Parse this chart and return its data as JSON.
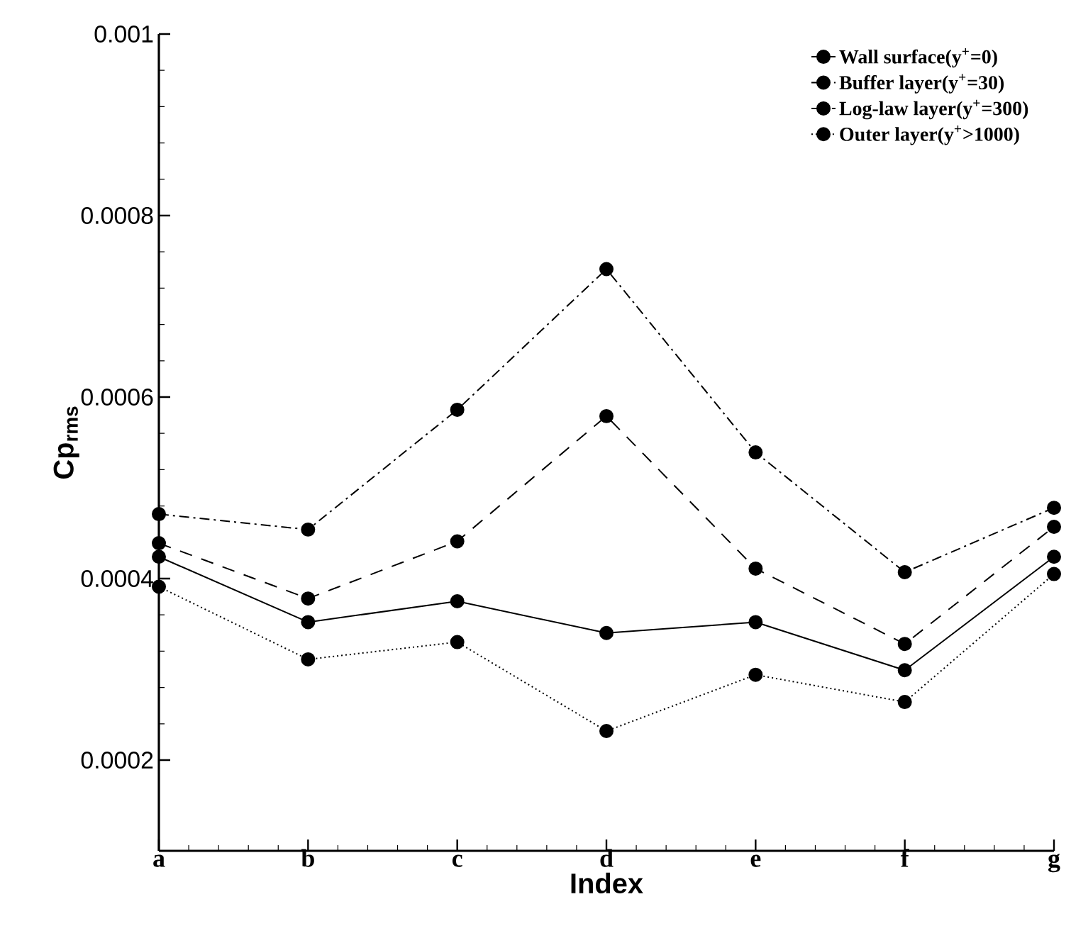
{
  "chart_data": {
    "type": "line",
    "xlabel": "Index",
    "ylabel": "Cp$_{rms}$",
    "categories": [
      "a",
      "b",
      "c",
      "d",
      "e",
      "f",
      "g"
    ],
    "ylim": [
      0.0001,
      0.001
    ],
    "yticks": [
      0.0002,
      0.0004,
      0.0006,
      0.0008,
      0.001
    ],
    "grid": false,
    "legend": "top right",
    "marker": "circle",
    "series": [
      {
        "name": "Wall surface(y$^{+}$=0)",
        "color": "#000000",
        "line_style": "solid",
        "values": [
          0.000424,
          0.000352,
          0.000375,
          0.00034,
          0.000352,
          0.000299,
          0.000424
        ]
      },
      {
        "name": "Buffer layer(y$^{+}$=30)",
        "color": "#000000",
        "line_style": "dashed",
        "values": [
          0.000439,
          0.000378,
          0.000441,
          0.000579,
          0.000411,
          0.000328,
          0.000457
        ]
      },
      {
        "name": "Log-law layer(y$^{+}$=300)",
        "color": "#000000",
        "line_style": "dashdot",
        "values": [
          0.000471,
          0.000454,
          0.000586,
          0.000741,
          0.000539,
          0.000407,
          0.000478
        ]
      },
      {
        "name": "Outer layer(y$^{+}$>1000)",
        "color": "#000000",
        "line_style": "dotted",
        "values": [
          0.000391,
          0.000311,
          0.00033,
          0.000232,
          0.000294,
          0.000264,
          0.000405
        ]
      }
    ]
  }
}
